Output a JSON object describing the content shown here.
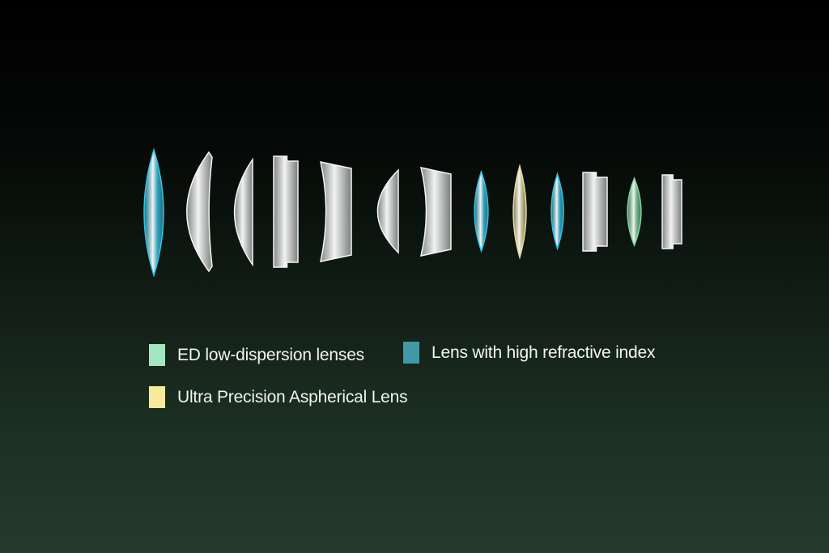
{
  "legend": [
    {
      "label": "ED low-dispersion lenses",
      "color": "#a4e6c0"
    },
    {
      "label": "Lens with high refractive index",
      "color": "#3f9aa6"
    },
    {
      "label": "Ultra Precision Aspherical Lens",
      "color": "#f6ea9b"
    }
  ],
  "lens_type_colors": {
    "clear": "#e6e8e8",
    "high-refractive": "#35c4e6",
    "aspherical": "#e8dca0",
    "ed": "#7fd6a0"
  },
  "lenses": [
    "high-refractive",
    "clear",
    "clear",
    "clear",
    "clear",
    "clear",
    "clear",
    "high-refractive",
    "aspherical",
    "high-refractive",
    "clear",
    "ed",
    "clear"
  ]
}
